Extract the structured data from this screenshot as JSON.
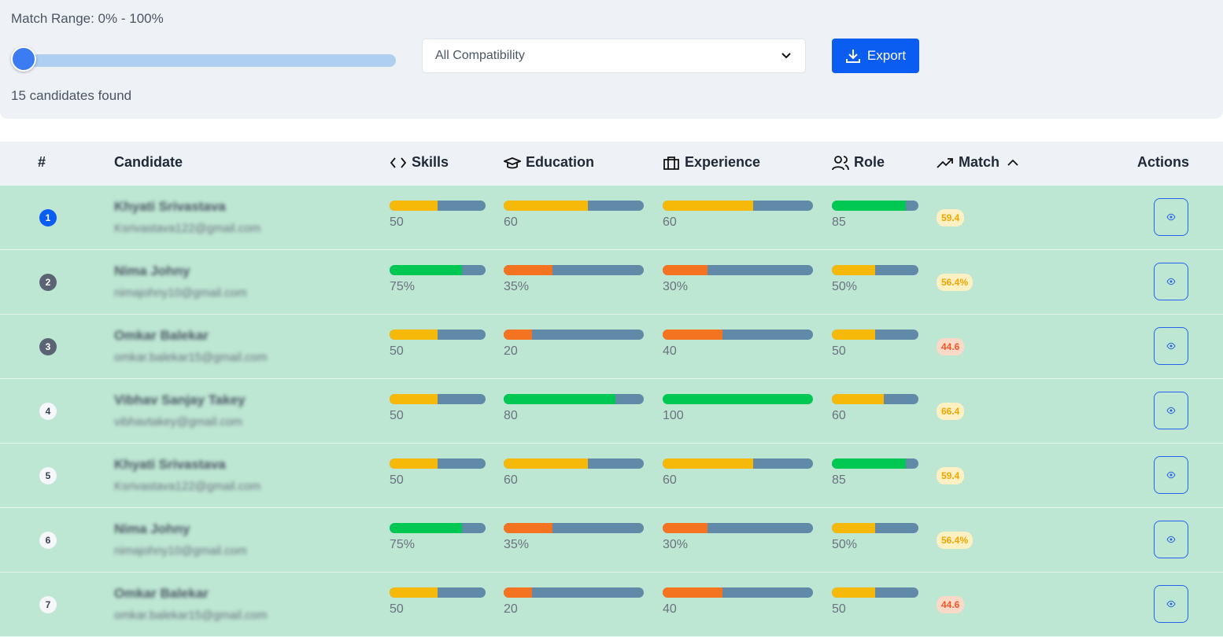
{
  "filters": {
    "range_label": "Match Range: 0% - 100%",
    "compatibility": "All Compatibility",
    "export": "Export",
    "count": "15 candidates found"
  },
  "table": {
    "headers": [
      "#",
      "Candidate",
      "Skills",
      "Education",
      "Experience",
      "Role",
      "Match",
      "Actions"
    ],
    "rows": [
      {
        "rank": "1",
        "name": "Khyati Srivastava",
        "email": "Ksrivastava122@gmail.com",
        "skills": "50",
        "education": "60",
        "experience": "60",
        "role": "85",
        "match": "59.4"
      },
      {
        "rank": "2",
        "name": "Nima Johny",
        "email": "nimajohny10@gmail.com",
        "skills": "75%",
        "education": "35%",
        "experience": "30%",
        "role": "50%",
        "match": "56.4%"
      },
      {
        "rank": "3",
        "name": "Omkar Balekar",
        "email": "omkar.balekar15@gmail.com",
        "skills": "50",
        "education": "20",
        "experience": "40",
        "role": "50",
        "match": "44.6"
      },
      {
        "rank": "4",
        "name": "Vibhav Sanjay Takey",
        "email": "vibhavtakey@gmail.com",
        "skills": "50",
        "education": "80",
        "experience": "100",
        "role": "60",
        "match": "66.4"
      },
      {
        "rank": "5",
        "name": "Khyati Srivastava",
        "email": "Ksrivastava122@gmail.com",
        "skills": "50",
        "education": "60",
        "experience": "60",
        "role": "85",
        "match": "59.4"
      },
      {
        "rank": "6",
        "name": "Nima Johny",
        "email": "nimajohny10@gmail.com",
        "skills": "75%",
        "education": "35%",
        "experience": "30%",
        "role": "50%",
        "match": "56.4%"
      },
      {
        "rank": "7",
        "name": "Omkar Balekar",
        "email": "omkar.balekar15@gmail.com",
        "skills": "50",
        "education": "20",
        "experience": "40",
        "role": "50",
        "match": "44.6"
      }
    ]
  }
}
